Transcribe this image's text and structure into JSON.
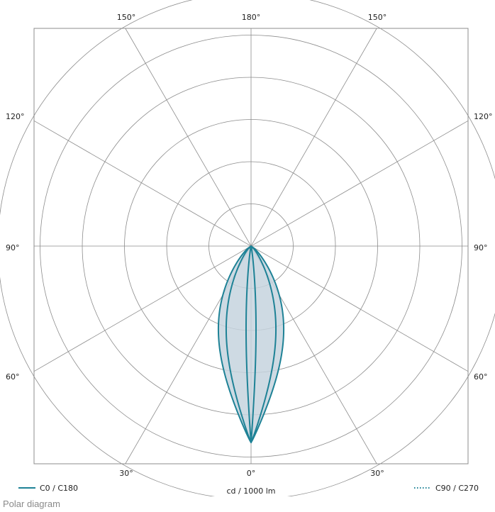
{
  "caption": "Polar diagram",
  "chart_data": {
    "type": "polar",
    "unit_label": "cd / 1000 lm",
    "angle_labels": {
      "top": [
        "150°",
        "180°",
        "150°"
      ],
      "left": [
        "120°",
        "90°",
        "60°"
      ],
      "right": [
        "120°",
        "90°",
        "60°"
      ],
      "bottom": [
        "30°",
        "0°",
        "30°"
      ]
    },
    "grid": {
      "rings": 6,
      "spokes_every_deg": 30
    },
    "legend": [
      {
        "label": "C0 / C180",
        "style": "solid"
      },
      {
        "label": "C90 / C270",
        "style": "dotted"
      }
    ],
    "colors": {
      "curve": "#1e8296",
      "fill": "#c6d3de",
      "grid": "#8c8c8c"
    },
    "series": [
      {
        "name": "C0 / C180",
        "kind": "outer",
        "rel_half_width": 0.138
      },
      {
        "name": "C90 / C270",
        "kind": "inner",
        "rel_half_width": 0.105
      },
      {
        "name": "C0 / C180",
        "kind": "narrow",
        "rel_half_width": 0.021
      }
    ]
  }
}
